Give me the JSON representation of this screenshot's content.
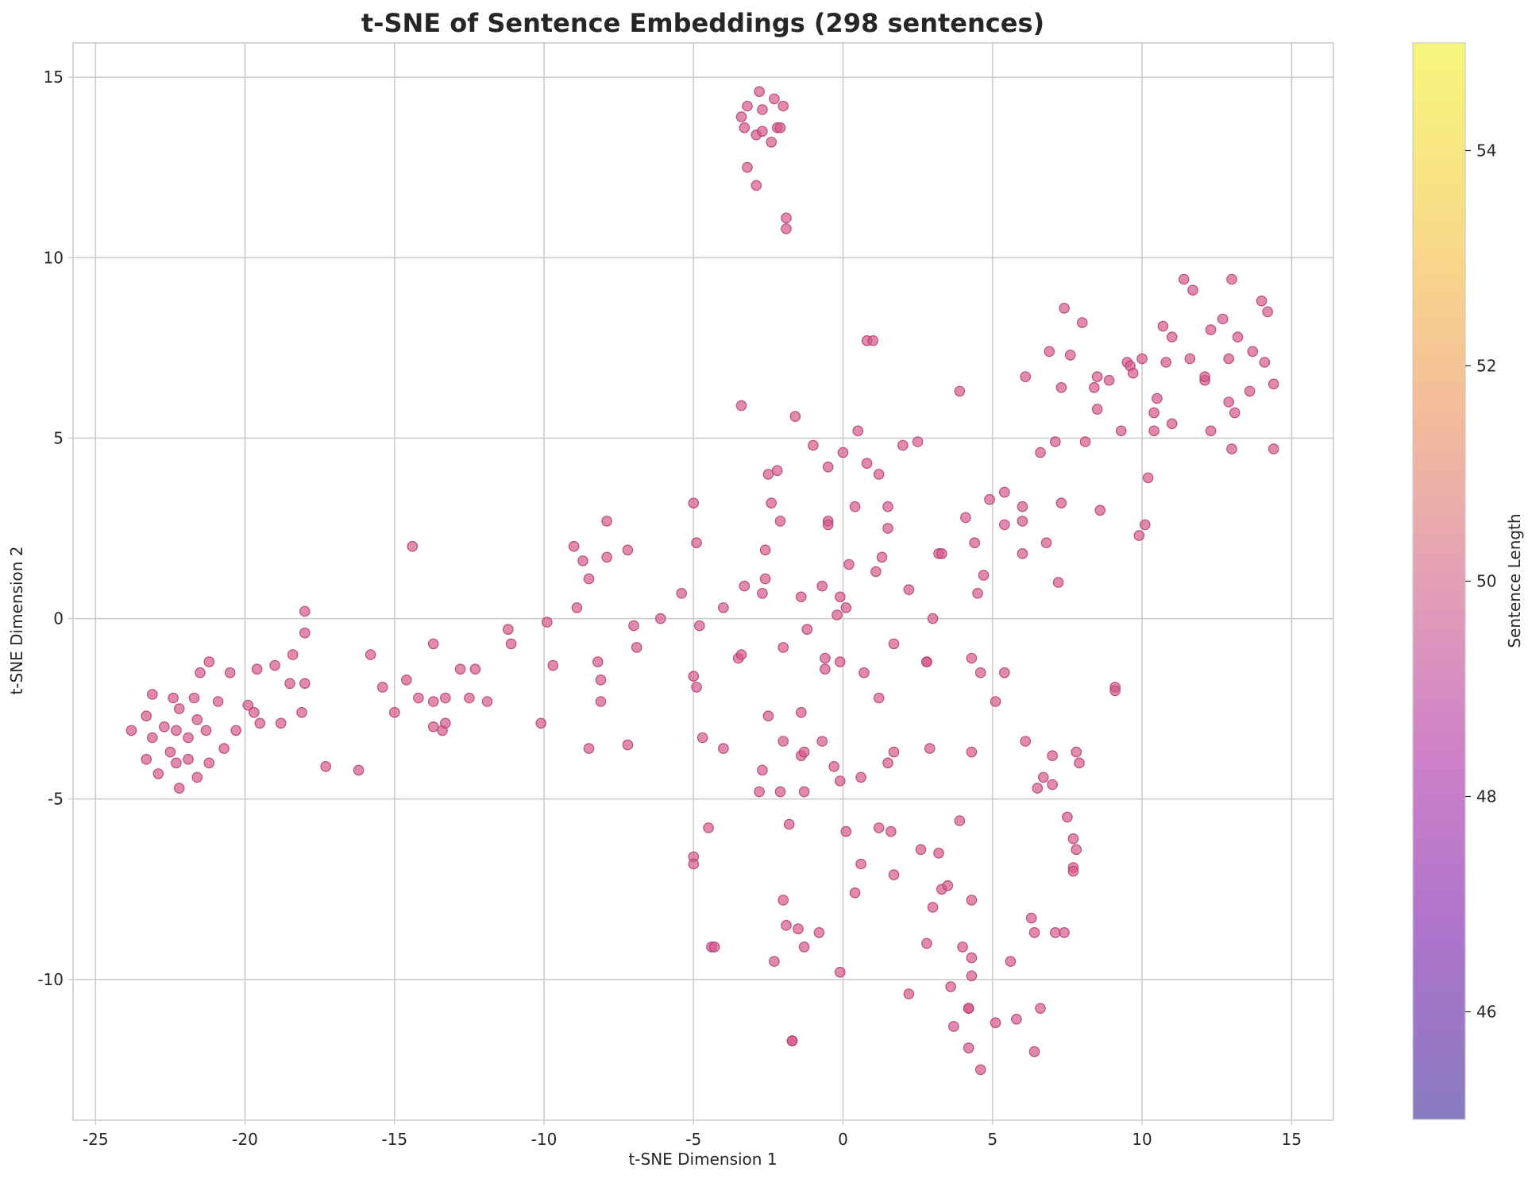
{
  "chart_data": {
    "type": "scatter",
    "title": "t-SNE of Sentence Embeddings (298 sentences)",
    "xlabel": "t-SNE Dimension 1",
    "ylabel": "t-SNE Dimension 2",
    "xlim": [
      -25.75,
      16.4
    ],
    "ylim": [
      -13.9,
      15.95
    ],
    "xticks": [
      -25,
      -20,
      -15,
      -10,
      -5,
      0,
      5,
      10,
      15
    ],
    "yticks": [
      -10,
      -5,
      0,
      5,
      10,
      15
    ],
    "xtick_labels": [
      "-25",
      "-20",
      "-15",
      "-10",
      "-5",
      "0",
      "5",
      "10",
      "15"
    ],
    "ytick_labels": [
      "-10",
      "-5",
      "0",
      "5",
      "10",
      "15"
    ],
    "grid": true,
    "marker_color": "#d6588a",
    "marker_edge_color": "#b0396d",
    "colorbar": {
      "label": "Sentence Length",
      "range": [
        45,
        55
      ],
      "ticks": [
        46,
        48,
        50,
        52,
        54
      ],
      "tick_labels": [
        "46",
        "48",
        "50",
        "52",
        "54"
      ],
      "colors": [
        "#7a6cb8",
        "#a364c6",
        "#c772c2",
        "#e095ae",
        "#f3b68e",
        "#f8d879",
        "#f4f56e"
      ]
    },
    "points": [
      [
        -23.8,
        -3.1
      ],
      [
        -23.3,
        -2.7
      ],
      [
        -23.3,
        -3.9
      ],
      [
        -23.1,
        -2.1
      ],
      [
        -23.1,
        -3.3
      ],
      [
        -22.9,
        -4.3
      ],
      [
        -22.7,
        -3.0
      ],
      [
        -22.5,
        -3.7
      ],
      [
        -22.4,
        -2.2
      ],
      [
        -22.3,
        -3.1
      ],
      [
        -22.3,
        -4.0
      ],
      [
        -22.2,
        -2.5
      ],
      [
        -22.2,
        -4.7
      ],
      [
        -21.9,
        -3.9
      ],
      [
        -21.9,
        -3.3
      ],
      [
        -21.7,
        -2.2
      ],
      [
        -21.6,
        -2.8
      ],
      [
        -21.6,
        -4.4
      ],
      [
        -21.5,
        -1.5
      ],
      [
        -21.3,
        -3.1
      ],
      [
        -21.2,
        -1.2
      ],
      [
        -21.2,
        -4.0
      ],
      [
        -20.9,
        -2.3
      ],
      [
        -20.7,
        -3.6
      ],
      [
        -20.5,
        -1.5
      ],
      [
        -20.3,
        -3.1
      ],
      [
        -19.9,
        -2.4
      ],
      [
        -19.7,
        -2.6
      ],
      [
        -19.6,
        -1.4
      ],
      [
        -19.5,
        -2.9
      ],
      [
        -19.0,
        -1.3
      ],
      [
        -18.8,
        -2.9
      ],
      [
        -18.5,
        -1.8
      ],
      [
        -18.4,
        -1.0
      ],
      [
        -18.1,
        -2.6
      ],
      [
        -18.0,
        -1.8
      ],
      [
        -18.0,
        -0.4
      ],
      [
        -18.0,
        0.2
      ],
      [
        -17.3,
        -4.1
      ],
      [
        -16.2,
        -4.2
      ],
      [
        -15.8,
        -1.0
      ],
      [
        -15.4,
        -1.9
      ],
      [
        -15.0,
        -2.6
      ],
      [
        -14.6,
        -1.7
      ],
      [
        -14.4,
        2.0
      ],
      [
        -14.2,
        -2.2
      ],
      [
        -13.7,
        -0.7
      ],
      [
        -13.7,
        -3.0
      ],
      [
        -13.7,
        -2.3
      ],
      [
        -13.4,
        -3.1
      ],
      [
        -13.3,
        -2.9
      ],
      [
        -13.3,
        -2.2
      ],
      [
        -12.8,
        -1.4
      ],
      [
        -12.5,
        -2.2
      ],
      [
        -12.3,
        -1.4
      ],
      [
        -11.9,
        -2.3
      ],
      [
        -11.2,
        -0.3
      ],
      [
        -11.1,
        -0.7
      ],
      [
        -10.1,
        -2.9
      ],
      [
        -9.9,
        -0.1
      ],
      [
        -9.7,
        -1.3
      ],
      [
        -9.0,
        2.0
      ],
      [
        -8.9,
        0.3
      ],
      [
        -8.7,
        1.6
      ],
      [
        -8.5,
        -3.6
      ],
      [
        -8.5,
        1.1
      ],
      [
        -8.2,
        -1.2
      ],
      [
        -8.1,
        -2.3
      ],
      [
        -8.1,
        -1.7
      ],
      [
        -7.9,
        2.7
      ],
      [
        -7.9,
        1.7
      ],
      [
        -7.2,
        1.9
      ],
      [
        -7.2,
        -3.5
      ],
      [
        -7.0,
        -0.2
      ],
      [
        -6.9,
        -0.8
      ],
      [
        -6.1,
        0.0
      ],
      [
        -5.4,
        0.7
      ],
      [
        -5.0,
        3.2
      ],
      [
        -5.0,
        -1.6
      ],
      [
        -5.0,
        -6.6
      ],
      [
        -5.0,
        -6.8
      ],
      [
        -4.9,
        -1.9
      ],
      [
        -4.9,
        2.1
      ],
      [
        -4.8,
        -0.2
      ],
      [
        -4.7,
        -3.3
      ],
      [
        -4.5,
        -5.8
      ],
      [
        -4.4,
        -9.1
      ],
      [
        -4.3,
        -9.1
      ],
      [
        -4.0,
        0.3
      ],
      [
        -4.0,
        -3.6
      ],
      [
        -3.5,
        -1.1
      ],
      [
        -3.4,
        -1.0
      ],
      [
        -3.4,
        5.9
      ],
      [
        -3.3,
        0.9
      ],
      [
        -2.8,
        -4.8
      ],
      [
        -2.7,
        -4.2
      ],
      [
        -2.7,
        0.7
      ],
      [
        -2.6,
        1.1
      ],
      [
        -2.6,
        1.9
      ],
      [
        -2.5,
        4.0
      ],
      [
        -2.5,
        -2.7
      ],
      [
        -2.4,
        3.2
      ],
      [
        -2.3,
        -9.5
      ],
      [
        -2.2,
        4.1
      ],
      [
        -2.1,
        2.7
      ],
      [
        -2.1,
        -4.8
      ],
      [
        -2.0,
        -3.4
      ],
      [
        -2.0,
        -0.8
      ],
      [
        -2.0,
        -7.8
      ],
      [
        -1.9,
        -8.5
      ],
      [
        -1.8,
        -5.7
      ],
      [
        -1.7,
        -11.7
      ],
      [
        -1.7,
        -11.7
      ],
      [
        -1.6,
        5.6
      ],
      [
        -1.5,
        -8.6
      ],
      [
        -1.4,
        0.6
      ],
      [
        -1.4,
        -2.6
      ],
      [
        -1.4,
        -3.8
      ],
      [
        -1.3,
        -3.7
      ],
      [
        -1.3,
        -4.8
      ],
      [
        -1.3,
        -9.1
      ],
      [
        -1.2,
        -0.3
      ],
      [
        -1.0,
        4.8
      ],
      [
        -0.8,
        -8.7
      ],
      [
        -0.7,
        -3.4
      ],
      [
        -0.7,
        0.9
      ],
      [
        -0.6,
        -1.1
      ],
      [
        -0.6,
        -1.4
      ],
      [
        -0.5,
        4.2
      ],
      [
        -0.5,
        2.7
      ],
      [
        -0.5,
        2.6
      ],
      [
        -0.3,
        -4.1
      ],
      [
        -0.2,
        0.1
      ],
      [
        -0.1,
        -1.2
      ],
      [
        -0.1,
        0.6
      ],
      [
        -0.1,
        -4.5
      ],
      [
        -0.1,
        -9.8
      ],
      [
        0.0,
        4.6
      ],
      [
        0.1,
        -5.9
      ],
      [
        0.1,
        0.3
      ],
      [
        0.2,
        1.5
      ],
      [
        0.4,
        3.1
      ],
      [
        0.4,
        -7.6
      ],
      [
        0.5,
        5.2
      ],
      [
        0.6,
        -6.8
      ],
      [
        0.6,
        -4.4
      ],
      [
        0.7,
        -1.5
      ],
      [
        0.8,
        4.3
      ],
      [
        0.8,
        7.7
      ],
      [
        1.0,
        7.7
      ],
      [
        1.1,
        1.3
      ],
      [
        1.2,
        -2.2
      ],
      [
        1.2,
        4.0
      ],
      [
        1.2,
        -5.8
      ],
      [
        1.3,
        1.7
      ],
      [
        1.5,
        3.1
      ],
      [
        1.5,
        -4.0
      ],
      [
        1.5,
        2.5
      ],
      [
        1.6,
        -5.9
      ],
      [
        1.7,
        -0.7
      ],
      [
        1.7,
        -3.7
      ],
      [
        1.7,
        -7.1
      ],
      [
        2.0,
        4.8
      ],
      [
        2.2,
        0.8
      ],
      [
        2.2,
        -10.4
      ],
      [
        2.5,
        4.9
      ],
      [
        2.6,
        -6.4
      ],
      [
        2.8,
        -1.2
      ],
      [
        2.8,
        -1.2
      ],
      [
        2.8,
        -9.0
      ],
      [
        2.9,
        -3.6
      ],
      [
        3.0,
        0.0
      ],
      [
        3.0,
        -8.0
      ],
      [
        3.2,
        -6.5
      ],
      [
        3.2,
        1.8
      ],
      [
        3.3,
        -7.5
      ],
      [
        3.3,
        1.8
      ],
      [
        3.5,
        -7.4
      ],
      [
        3.6,
        -10.2
      ],
      [
        3.7,
        -11.3
      ],
      [
        3.9,
        -5.6
      ],
      [
        3.9,
        6.3
      ],
      [
        4.0,
        -9.1
      ],
      [
        4.1,
        2.8
      ],
      [
        4.2,
        -10.8
      ],
      [
        4.2,
        -10.8
      ],
      [
        4.2,
        -11.9
      ],
      [
        4.3,
        -7.8
      ],
      [
        4.3,
        -1.1
      ],
      [
        4.3,
        -3.7
      ],
      [
        4.3,
        -9.9
      ],
      [
        4.3,
        -9.4
      ],
      [
        4.4,
        2.1
      ],
      [
        4.5,
        0.7
      ],
      [
        4.6,
        -1.5
      ],
      [
        4.6,
        -12.5
      ],
      [
        4.7,
        1.2
      ],
      [
        4.9,
        3.3
      ],
      [
        5.1,
        -2.3
      ],
      [
        5.1,
        -11.2
      ],
      [
        5.4,
        2.6
      ],
      [
        5.4,
        3.5
      ],
      [
        5.4,
        -1.5
      ],
      [
        5.6,
        -9.5
      ],
      [
        5.8,
        -11.1
      ],
      [
        6.0,
        3.1
      ],
      [
        6.0,
        2.7
      ],
      [
        6.0,
        1.8
      ],
      [
        6.1,
        -3.4
      ],
      [
        6.1,
        6.7
      ],
      [
        6.3,
        -8.3
      ],
      [
        6.4,
        -8.7
      ],
      [
        6.4,
        -12.0
      ],
      [
        6.5,
        -4.7
      ],
      [
        6.6,
        4.6
      ],
      [
        6.6,
        -10.8
      ],
      [
        6.7,
        -4.4
      ],
      [
        6.8,
        2.1
      ],
      [
        6.9,
        7.4
      ],
      [
        7.0,
        -4.6
      ],
      [
        7.0,
        -3.8
      ],
      [
        7.1,
        -8.7
      ],
      [
        7.1,
        4.9
      ],
      [
        7.2,
        1.0
      ],
      [
        7.3,
        3.2
      ],
      [
        7.3,
        6.4
      ],
      [
        7.4,
        8.6
      ],
      [
        7.4,
        -8.7
      ],
      [
        7.5,
        -5.5
      ],
      [
        7.6,
        7.3
      ],
      [
        7.7,
        -6.9
      ],
      [
        7.7,
        -7.0
      ],
      [
        7.7,
        -6.1
      ],
      [
        7.8,
        -3.7
      ],
      [
        7.8,
        -6.4
      ],
      [
        7.9,
        -4.0
      ],
      [
        8.0,
        8.2
      ],
      [
        8.1,
        4.9
      ],
      [
        8.4,
        6.4
      ],
      [
        8.5,
        6.7
      ],
      [
        8.5,
        5.8
      ],
      [
        8.6,
        3.0
      ],
      [
        8.9,
        6.6
      ],
      [
        9.1,
        -1.9
      ],
      [
        9.1,
        -2.0
      ],
      [
        9.3,
        5.2
      ],
      [
        9.5,
        7.1
      ],
      [
        9.6,
        7.0
      ],
      [
        9.7,
        6.8
      ],
      [
        9.9,
        2.3
      ],
      [
        10.0,
        7.2
      ],
      [
        10.1,
        2.6
      ],
      [
        10.2,
        3.9
      ],
      [
        10.4,
        5.7
      ],
      [
        10.4,
        5.2
      ],
      [
        10.5,
        6.1
      ],
      [
        10.7,
        8.1
      ],
      [
        10.8,
        7.1
      ],
      [
        11.0,
        5.4
      ],
      [
        11.0,
        7.8
      ],
      [
        11.4,
        9.4
      ],
      [
        11.6,
        7.2
      ],
      [
        11.7,
        9.1
      ],
      [
        12.1,
        6.6
      ],
      [
        12.1,
        6.7
      ],
      [
        12.3,
        8.0
      ],
      [
        12.3,
        5.2
      ],
      [
        12.7,
        8.3
      ],
      [
        12.9,
        6.0
      ],
      [
        12.9,
        7.2
      ],
      [
        13.0,
        9.4
      ],
      [
        13.0,
        4.7
      ],
      [
        13.1,
        5.7
      ],
      [
        13.2,
        7.8
      ],
      [
        13.6,
        6.3
      ],
      [
        13.7,
        7.4
      ],
      [
        14.0,
        8.8
      ],
      [
        14.1,
        7.1
      ],
      [
        14.2,
        8.5
      ],
      [
        14.4,
        4.7
      ],
      [
        14.4,
        6.5
      ],
      [
        -3.4,
        13.9
      ],
      [
        -3.2,
        14.2
      ],
      [
        -3.3,
        13.6
      ],
      [
        -2.9,
        13.4
      ],
      [
        -2.8,
        14.6
      ],
      [
        -2.7,
        13.5
      ],
      [
        -2.7,
        14.1
      ],
      [
        -2.4,
        13.2
      ],
      [
        -2.3,
        14.4
      ],
      [
        -2.2,
        13.6
      ],
      [
        -2.1,
        13.6
      ],
      [
        -2.0,
        14.2
      ],
      [
        -3.2,
        12.5
      ],
      [
        -2.9,
        12.0
      ],
      [
        -1.9,
        11.1
      ],
      [
        -1.9,
        10.8
      ]
    ]
  }
}
